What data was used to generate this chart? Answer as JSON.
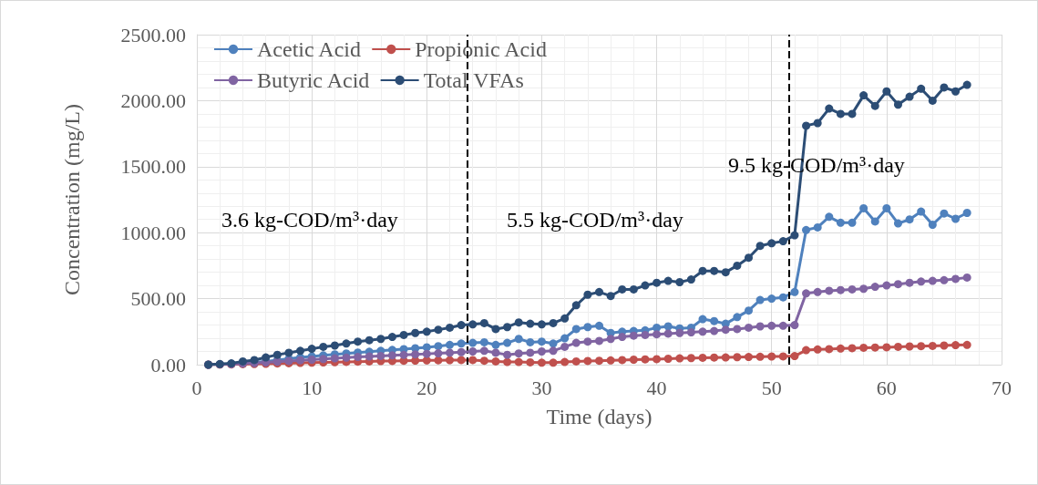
{
  "chart_data": {
    "type": "line",
    "xlabel": "Time (days)",
    "ylabel": "Concentration (mg/L)",
    "x": [
      1,
      2,
      3,
      4,
      5,
      6,
      7,
      8,
      9,
      10,
      11,
      12,
      13,
      14,
      15,
      16,
      17,
      18,
      19,
      20,
      21,
      22,
      23,
      24,
      25,
      26,
      27,
      28,
      29,
      30,
      31,
      32,
      33,
      34,
      35,
      36,
      37,
      38,
      39,
      40,
      41,
      42,
      43,
      44,
      45,
      46,
      47,
      48,
      49,
      50,
      51,
      52,
      53,
      54,
      55,
      56,
      57,
      58,
      59,
      60,
      61,
      62,
      63,
      64,
      65,
      66,
      67
    ],
    "series": [
      {
        "name": "Acetic Acid",
        "color": "#4f81bd",
        "values": [
          0,
          3,
          6,
          12,
          18,
          25,
          35,
          45,
          55,
          62,
          70,
          78,
          85,
          92,
          98,
          105,
          112,
          118,
          125,
          132,
          140,
          150,
          160,
          165,
          170,
          150,
          165,
          195,
          170,
          175,
          160,
          200,
          270,
          285,
          295,
          240,
          250,
          255,
          260,
          280,
          290,
          275,
          280,
          345,
          330,
          310,
          360,
          410,
          490,
          500,
          510,
          550,
          1020,
          1040,
          1120,
          1075,
          1075,
          1185,
          1085,
          1185,
          1070,
          1100,
          1160,
          1060,
          1145,
          1105,
          1150
        ]
      },
      {
        "name": "Propionic Acid",
        "color": "#c0504d",
        "values": [
          0,
          1,
          2,
          4,
          5,
          7,
          9,
          11,
          13,
          15,
          17,
          19,
          21,
          23,
          25,
          27,
          28,
          30,
          31,
          32,
          33,
          34,
          35,
          35,
          30,
          25,
          20,
          20,
          18,
          15,
          15,
          20,
          25,
          28,
          30,
          32,
          35,
          38,
          40,
          42,
          45,
          48,
          50,
          52,
          54,
          55,
          57,
          58,
          60,
          62,
          63,
          65,
          110,
          115,
          118,
          122,
          125,
          128,
          130,
          132,
          135,
          138,
          140,
          142,
          145,
          148,
          150
        ]
      },
      {
        "name": "Butyric Acid",
        "color": "#8064a2",
        "values": [
          0,
          2,
          4,
          8,
          12,
          17,
          22,
          28,
          33,
          38,
          43,
          48,
          53,
          58,
          62,
          66,
          70,
          74,
          78,
          82,
          86,
          90,
          95,
          100,
          105,
          90,
          75,
          85,
          90,
          100,
          105,
          135,
          165,
          175,
          180,
          195,
          210,
          220,
          225,
          230,
          235,
          240,
          245,
          250,
          255,
          265,
          270,
          280,
          290,
          295,
          295,
          300,
          540,
          550,
          560,
          565,
          570,
          575,
          590,
          600,
          610,
          620,
          630,
          635,
          640,
          650,
          660
        ]
      },
      {
        "name": "Total VFAs",
        "color": "#2c4d75",
        "values": [
          0,
          5,
          10,
          25,
          35,
          55,
          75,
          90,
          105,
          120,
          135,
          145,
          160,
          175,
          185,
          195,
          210,
          225,
          240,
          250,
          265,
          280,
          300,
          305,
          315,
          270,
          285,
          320,
          310,
          305,
          315,
          350,
          450,
          530,
          550,
          520,
          570,
          570,
          600,
          620,
          635,
          625,
          645,
          710,
          710,
          700,
          750,
          810,
          900,
          920,
          935,
          980,
          1810,
          1830,
          1940,
          1900,
          1900,
          2040,
          1960,
          2070,
          1970,
          2030,
          2090,
          2000,
          2100,
          2070,
          2120
        ]
      }
    ],
    "xlim": [
      0,
      70
    ],
    "xticks": [
      0,
      10,
      20,
      30,
      40,
      50,
      60,
      70
    ],
    "ylim": [
      0,
      2500
    ],
    "yticks": [
      {
        "value": 0,
        "label": "0.00"
      },
      {
        "value": 500,
        "label": "500.00"
      },
      {
        "value": 1000,
        "label": "1000.00"
      },
      {
        "value": 1500,
        "label": "1500.00"
      },
      {
        "value": 2000,
        "label": "2000.00"
      },
      {
        "value": 2500,
        "label": "2500.00"
      }
    ],
    "ref_lines": [
      {
        "axis": "x",
        "value": 23.5,
        "color": "#000000",
        "line_style": "dashed"
      },
      {
        "axis": "x",
        "value": 51.5,
        "color": "#000000",
        "line_style": "dashed"
      }
    ],
    "annotations": [
      "3.6 kg-COD/m³·day",
      "5.5 kg-COD/m³·day",
      "9.5 kg-COD/m³·day"
    ],
    "grid": true,
    "legend": "top left",
    "marker": "circle",
    "line_style": "solid"
  }
}
